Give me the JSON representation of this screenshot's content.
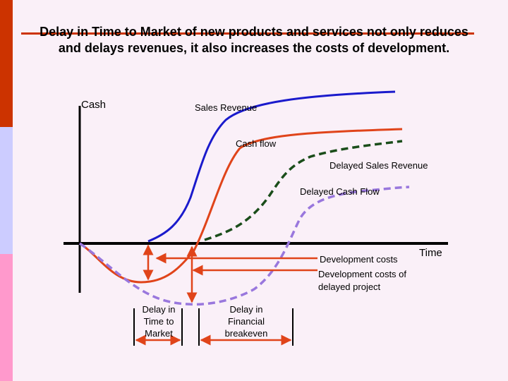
{
  "title": "Delay in Time to Market of new products and services not only reduces and delays revenues, it also increases the costs of development.",
  "labels": {
    "cash": "Cash",
    "sales_revenue": "Sales Revenue",
    "cash_flow": "Cash flow",
    "delayed_sales_revenue": "Delayed Sales Revenue",
    "delayed_cash_flow": "Delayed Cash Flow",
    "development_costs": "Development costs",
    "time": "Time",
    "development_costs_delayed": "Development costs of delayed project",
    "delay_time_to_market": "Delay in Time to Market",
    "delay_financial_breakeven": "Delay in Financial breakeven"
  },
  "colors": {
    "sales_revenue": "#1a1acc",
    "cash_flow": "#e0441a",
    "delayed_sales_revenue": "#1a4d1a",
    "delayed_cash_flow": "#9977dd",
    "accent": "#cc3300"
  }
}
